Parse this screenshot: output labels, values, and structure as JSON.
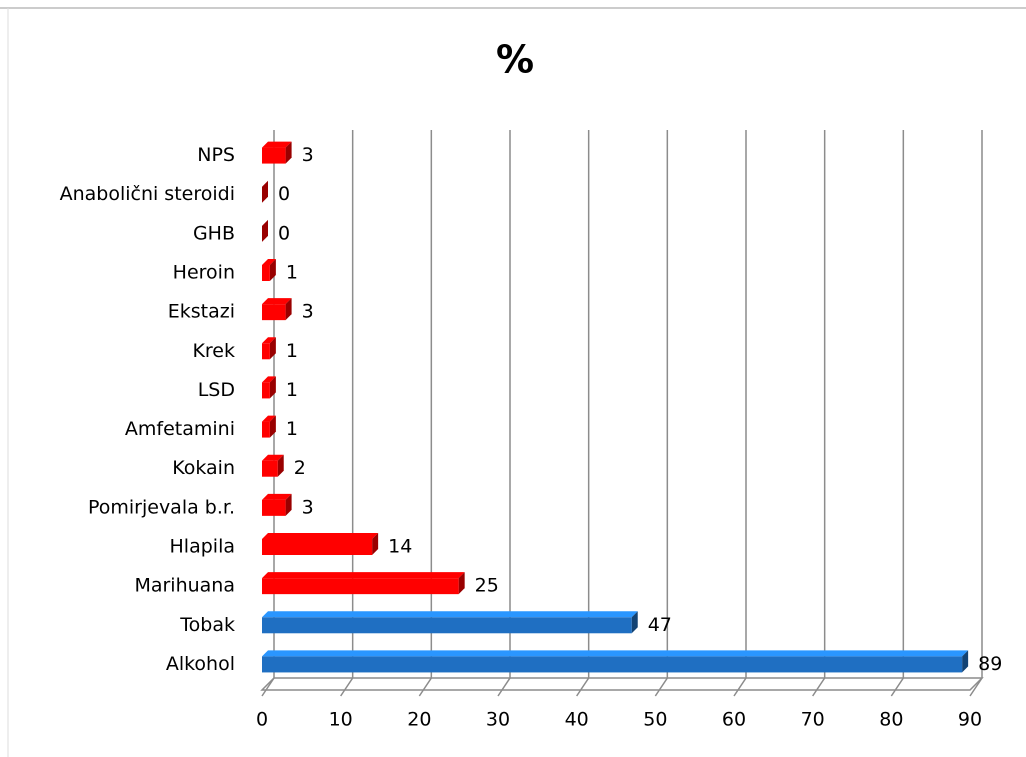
{
  "chart_data": {
    "type": "bar",
    "orientation": "horizontal",
    "title": "%",
    "categories": [
      "Alkohol",
      "Tobak",
      "Marihuana",
      "Hlapila",
      "Pomirjevala b.r.",
      "Kokain",
      "Amfetamini",
      "LSD",
      "Krek",
      "Ekstazi",
      "Heroin",
      "GHB",
      "Anabolični steroidi",
      "NPS"
    ],
    "values": [
      89,
      47,
      25,
      14,
      3,
      2,
      1,
      1,
      1,
      3,
      1,
      0,
      0,
      3
    ],
    "colors": [
      "#1f6fc2",
      "#1f6fc2",
      "#ff0000",
      "#ff0000",
      "#ff0000",
      "#ff0000",
      "#ff0000",
      "#ff0000",
      "#ff0000",
      "#ff0000",
      "#ff0000",
      "#ff0000",
      "#ff0000",
      "#ff0000"
    ],
    "xlim": [
      0,
      90
    ],
    "xticks": [
      0,
      10,
      20,
      30,
      40,
      50,
      60,
      70,
      80,
      90
    ],
    "grid": true
  }
}
